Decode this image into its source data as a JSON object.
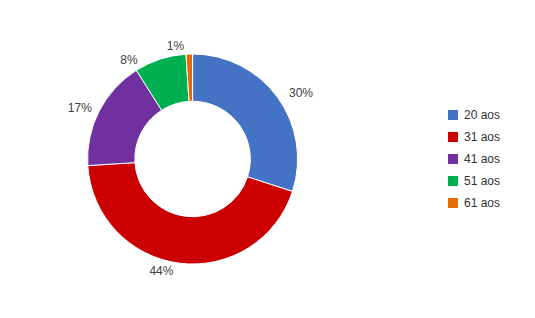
{
  "chart_data": {
    "type": "donut",
    "categories": [
      "20 aos",
      "31 aos",
      "41 aos",
      "51 aos",
      "61 aos"
    ],
    "values": [
      30,
      44,
      17,
      8,
      1
    ],
    "value_labels": [
      "30%",
      "44%",
      "17%",
      "8%",
      "1%"
    ],
    "colors": [
      "#4472c4",
      "#cc0000",
      "#7030a0",
      "#00b050",
      "#e36c09"
    ],
    "data_labels": true,
    "legend": "right"
  }
}
